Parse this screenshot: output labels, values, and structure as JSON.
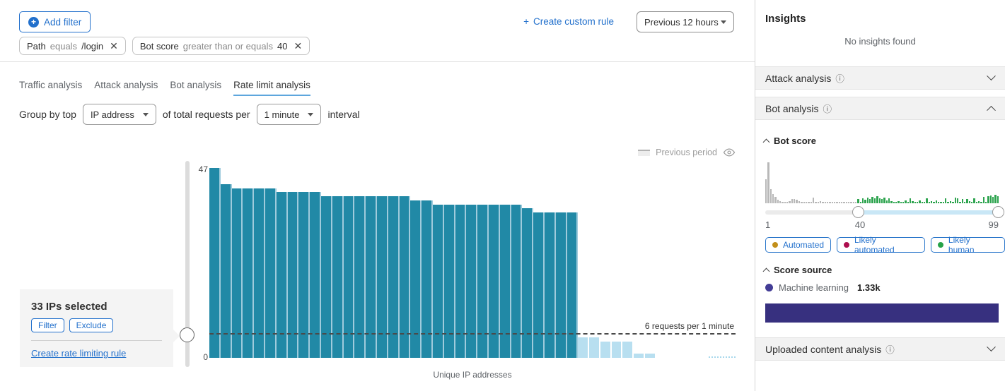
{
  "colors": {
    "accent_blue": "#2270cc",
    "tab_underline": "#5ea6dd",
    "bar_teal": "#2189a6",
    "bar_light_blue": "#b8dff0",
    "hist_gray": "#b8b8b8",
    "hist_green": "#2ea44f",
    "score_source_purple": "#37307f",
    "dot_automated": "#c28f1a",
    "dot_likely_automated": "#ad0d4e",
    "dot_likely_human": "#27a348",
    "dot_machine_learning": "#433d96"
  },
  "header": {
    "add_filter_label": "Add filter",
    "filters": [
      {
        "field": "Path",
        "operator": "equals",
        "value": "/login"
      },
      {
        "field": "Bot score",
        "operator": "greater than or equals",
        "value": "40"
      }
    ],
    "create_custom_rule_label": "Create custom rule",
    "plus": "+",
    "time_range": "Previous 12 hours"
  },
  "tabs": [
    {
      "label": "Traffic analysis",
      "active": false
    },
    {
      "label": "Attack analysis",
      "active": false
    },
    {
      "label": "Bot analysis",
      "active": false
    },
    {
      "label": "Rate limit analysis",
      "active": true
    }
  ],
  "group_by": {
    "prefix": "Group by top",
    "group_select": "IP address",
    "middle": "of total requests per",
    "interval_select": "1 minute",
    "suffix": "interval"
  },
  "chart_data": {
    "type": "bar",
    "title": "",
    "xlabel": "Unique IP addresses",
    "y_max_label": "47",
    "y_min_label": "0",
    "ylim": [
      0,
      47
    ],
    "legend_previous_period": "Previous period",
    "threshold_value": 6,
    "threshold_label": "6 requests per 1 minute",
    "selection_note": "33 IPs selected",
    "selected_values": [
      47,
      43,
      42,
      42,
      42,
      42,
      41,
      41,
      41,
      41,
      40,
      40,
      40,
      40,
      40,
      40,
      40,
      40,
      39,
      39,
      38,
      38,
      38,
      38,
      38,
      38,
      38,
      38,
      37,
      36,
      36,
      36,
      36
    ],
    "below_values": [
      5,
      5,
      4,
      4,
      4,
      1,
      1
    ]
  },
  "selection_panel": {
    "title": "33 IPs selected",
    "filter_label": "Filter",
    "exclude_label": "Exclude",
    "link_label": "Create rate limiting rule"
  },
  "sidebar": {
    "title": "Insights",
    "empty_text": "No insights found",
    "attack_section_label": "Attack analysis",
    "bot_section_label": "Bot analysis",
    "uploaded_section_label": "Uploaded content analysis",
    "info_glyph": "ⓘ",
    "bot_score": {
      "title": "Bot score",
      "min_label": "1",
      "mid_label": "40",
      "max_label": "99",
      "histogram_gray": [
        34,
        58,
        20,
        13,
        9,
        5,
        3,
        2,
        2,
        2,
        3,
        6,
        6,
        5,
        3,
        2,
        2,
        2,
        2,
        2,
        8,
        2,
        2,
        3,
        2,
        2,
        2,
        2,
        2,
        2,
        2,
        2,
        2,
        2,
        2,
        2,
        2,
        2,
        2
      ],
      "histogram_green": [
        6,
        2,
        7,
        5,
        8,
        6,
        9,
        7,
        10,
        7,
        6,
        8,
        4,
        7,
        3,
        2,
        2,
        3,
        2,
        2,
        4,
        2,
        7,
        3,
        2,
        2,
        4,
        2,
        2,
        7,
        2,
        3,
        2,
        4,
        2,
        2,
        2,
        7,
        2,
        3,
        2,
        8,
        7,
        2,
        6,
        2,
        6,
        3,
        2,
        7,
        2,
        3,
        2,
        9,
        2,
        10,
        11,
        9,
        12,
        10
      ],
      "legend": [
        {
          "label": "Automated",
          "color": "#c28f1a"
        },
        {
          "label": "Likely automated",
          "color": "#ad0d4e"
        },
        {
          "label": "Likely human",
          "color": "#27a348"
        }
      ]
    },
    "score_source": {
      "title": "Score source",
      "series_label": "Machine learning",
      "series_value": "1.33k",
      "bar_color": "#37307f",
      "dot_color": "#433d96"
    }
  }
}
